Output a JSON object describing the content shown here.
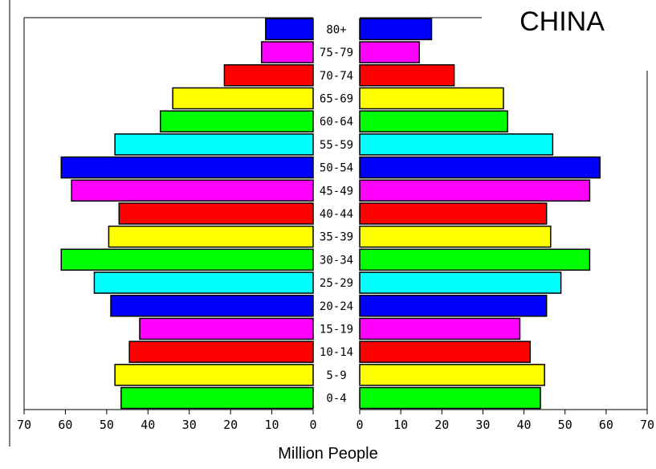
{
  "chart_data": {
    "type": "bar",
    "title": "CHINA",
    "xlabel": "Million People",
    "ylabel": "",
    "xlim": [
      0,
      70
    ],
    "x_ticks": [
      "70",
      "60",
      "50",
      "40",
      "30",
      "20",
      "10",
      "0",
      "0",
      "10",
      "20",
      "30",
      "40",
      "50",
      "60",
      "70"
    ],
    "categories": [
      "80+",
      "75-79",
      "70-74",
      "65-69",
      "60-64",
      "55-59",
      "50-54",
      "45-49",
      "40-44",
      "35-39",
      "30-34",
      "25-29",
      "20-24",
      "15-19",
      "10-14",
      "5-9",
      "0-4"
    ],
    "series": [
      {
        "side": "left",
        "values": [
          11.5,
          12.5,
          21.5,
          34,
          37,
          48,
          61,
          58.5,
          47,
          49.5,
          61,
          53,
          49,
          42,
          44.5,
          48,
          46.5
        ]
      },
      {
        "side": "right",
        "values": [
          17.5,
          14.5,
          23,
          35,
          36,
          47,
          58.5,
          56,
          45.5,
          46.5,
          56,
          49,
          45.5,
          39,
          41.5,
          45,
          44
        ]
      }
    ],
    "colors": [
      "#0000ff",
      "#ff00ff",
      "#ff0000",
      "#ffff00",
      "#00ff00",
      "#00ffff",
      "#0000ff",
      "#ff00ff",
      "#ff0000",
      "#ffff00",
      "#00ff00",
      "#00ffff",
      "#0000ff",
      "#ff00ff",
      "#ff0000",
      "#ffff00",
      "#00ff00"
    ]
  }
}
